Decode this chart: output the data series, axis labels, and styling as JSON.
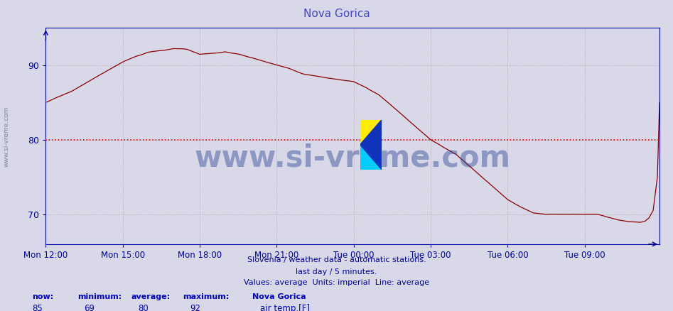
{
  "title": "Nova Gorica",
  "title_color": "#4444cc",
  "bg_color": "#d8d8e8",
  "plot_bg_color": "#d8d8e8",
  "line_color": "#880000",
  "avg_line_color": "#dd0000",
  "avg_value": 80,
  "ylim": [
    66,
    95
  ],
  "yticks": [
    70,
    80,
    90
  ],
  "axis_color": "#0000aa",
  "tick_color": "#0000aa",
  "grid_color": "#bb9999",
  "watermark_text": "www.si-vreme.com",
  "watermark_color": "#1a3a8a",
  "watermark_alpha": 0.4,
  "watermark_fontsize": 30,
  "sidebar_text": "www.si-vreme.com",
  "footer_line1": "Slovenia / weather data - automatic stations.",
  "footer_line2": "last day / 5 minutes.",
  "footer_line3": "Values: average  Units: imperial  Line: average",
  "footer_color": "#0000aa",
  "stats_labels": [
    "now:",
    "minimum:",
    "average:",
    "maximum:"
  ],
  "stats_values": [
    85,
    69,
    80,
    92
  ],
  "stats_series_name": "Nova Gorica",
  "stats_legend_label": "air temp.[F]",
  "stats_color": "#0000cc",
  "x_tick_labels": [
    "Mon 12:00",
    "Mon 15:00",
    "Mon 18:00",
    "Mon 21:00",
    "Tue 00:00",
    "Tue 03:00",
    "Tue 06:00",
    "Tue 09:00"
  ],
  "x_tick_positions": [
    0,
    36,
    72,
    108,
    144,
    180,
    216,
    252
  ],
  "xlim": [
    0,
    287
  ],
  "n_points": 288,
  "key_x": [
    0,
    6,
    12,
    18,
    24,
    30,
    36,
    42,
    48,
    54,
    60,
    66,
    72,
    78,
    84,
    90,
    96,
    102,
    108,
    114,
    120,
    126,
    132,
    138,
    144,
    150,
    156,
    162,
    168,
    174,
    180,
    186,
    192,
    198,
    204,
    210,
    216,
    222,
    228,
    234,
    240,
    246,
    252,
    258,
    264,
    268,
    272,
    276,
    278,
    280,
    282,
    284,
    286,
    287
  ],
  "key_y": [
    85.0,
    85.8,
    86.5,
    87.5,
    88.5,
    89.5,
    90.5,
    91.2,
    91.8,
    92.0,
    92.1,
    92.0,
    91.5,
    91.8,
    92.0,
    91.5,
    91.0,
    90.5,
    90.0,
    89.5,
    88.8,
    88.5,
    88.2,
    88.0,
    87.8,
    87.0,
    86.0,
    84.5,
    83.0,
    81.5,
    80.0,
    79.0,
    78.0,
    76.5,
    75.0,
    73.5,
    72.0,
    71.0,
    70.2,
    70.0,
    70.0,
    70.0,
    70.0,
    70.0,
    69.5,
    69.2,
    69.0,
    68.9,
    68.9,
    69.0,
    69.5,
    70.5,
    75.0,
    85.0
  ]
}
